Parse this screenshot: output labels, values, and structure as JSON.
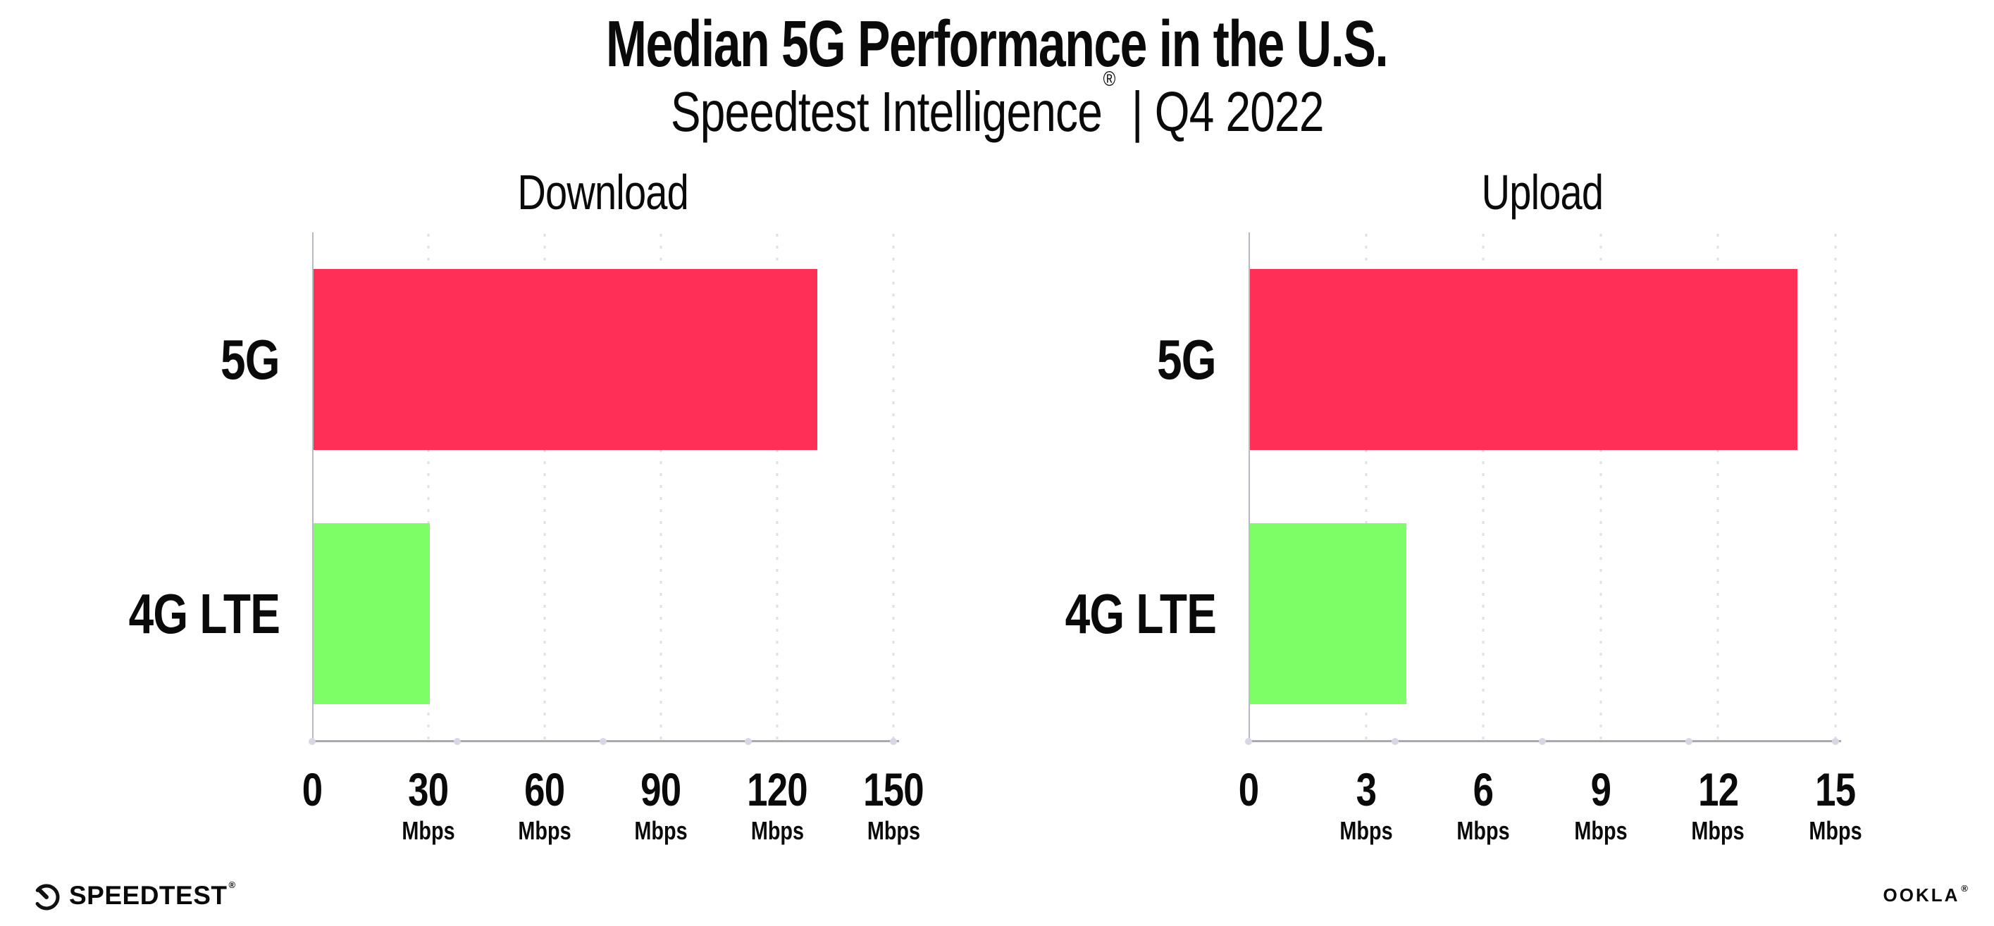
{
  "header": {
    "title": "Median 5G Performance in the U.S.",
    "subtitle_brand": "Speedtest Intelligence",
    "subtitle_reg": "®",
    "subtitle_rest": " | Q4 2022"
  },
  "chart_data": [
    {
      "type": "bar",
      "orientation": "horizontal",
      "title": "Download",
      "categories": [
        "5G",
        "4G LTE"
      ],
      "values": [
        130,
        30
      ],
      "unit": "Mbps",
      "xlabel": "",
      "ylabel": "",
      "xlim": [
        0,
        150
      ],
      "xticks": [
        0,
        30,
        60,
        90,
        120,
        150
      ],
      "bar_colors": [
        "#FF2F57",
        "#7DFD66"
      ],
      "grid": "dotted-vertical",
      "legend": "none"
    },
    {
      "type": "bar",
      "orientation": "horizontal",
      "title": "Upload",
      "categories": [
        "5G",
        "4G LTE"
      ],
      "values": [
        14,
        4
      ],
      "unit": "Mbps",
      "xlabel": "",
      "ylabel": "",
      "xlim": [
        0,
        15
      ],
      "xticks": [
        0,
        3,
        6,
        9,
        12,
        15
      ],
      "bar_colors": [
        "#FF2F57",
        "#7DFD66"
      ],
      "grid": "dotted-vertical",
      "legend": "none"
    }
  ],
  "footer": {
    "speedtest_label": "SPEEDTEST",
    "speedtest_reg": "®",
    "ookla_label": "OOKLA",
    "ookla_reg": "®"
  },
  "colors": {
    "bar_5g": "#FF2F57",
    "bar_4g_lte": "#7DFD66",
    "axis_line": "#A9A9B2",
    "grid_dot": "#DEDEEC",
    "text": "#0A0A0A"
  }
}
